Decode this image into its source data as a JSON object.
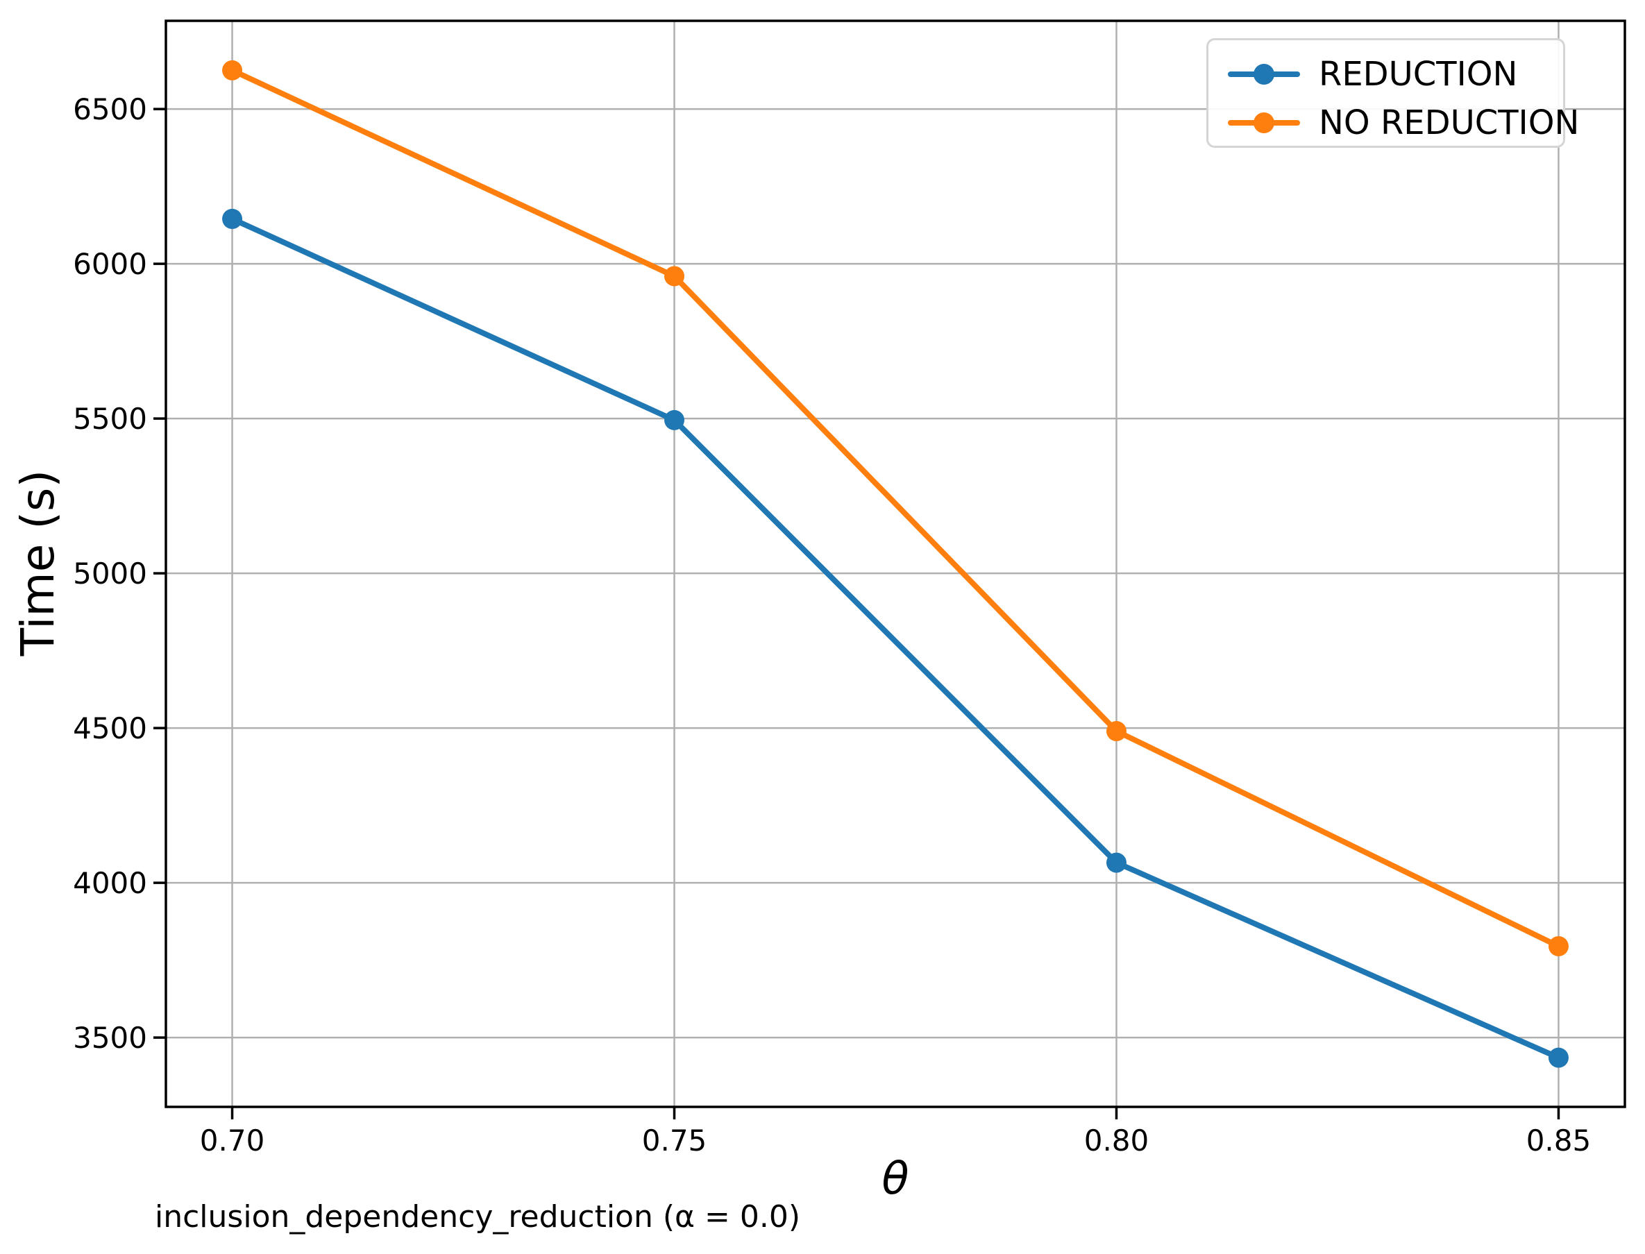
{
  "chart_data": {
    "type": "line",
    "title": "",
    "xlabel": "θ",
    "ylabel": "Time (s)",
    "caption": "inclusion_dependency_reduction (α = 0.0)",
    "x": [
      0.7,
      0.75,
      0.8,
      0.85
    ],
    "x_tick_labels": [
      "0.70",
      "0.75",
      "0.80",
      "0.85"
    ],
    "yticks": [
      3500,
      4000,
      4500,
      5000,
      5500,
      6000,
      6500
    ],
    "xlim": [
      0.6925,
      0.8575
    ],
    "ylim": [
      3276,
      6785
    ],
    "grid": true,
    "legend_position": "upper right",
    "series": [
      {
        "name": "REDUCTION",
        "color": "#1f77b4",
        "values": [
          6145,
          5495,
          4065,
          3435
        ]
      },
      {
        "name": "NO REDUCTION",
        "color": "#ff7f0e",
        "values": [
          6625,
          5960,
          4490,
          3795
        ]
      }
    ]
  },
  "colors": {
    "grid": "#b0b0b0",
    "spine": "#000000",
    "legend_border": "#d5d5d5",
    "background": "#ffffff"
  }
}
